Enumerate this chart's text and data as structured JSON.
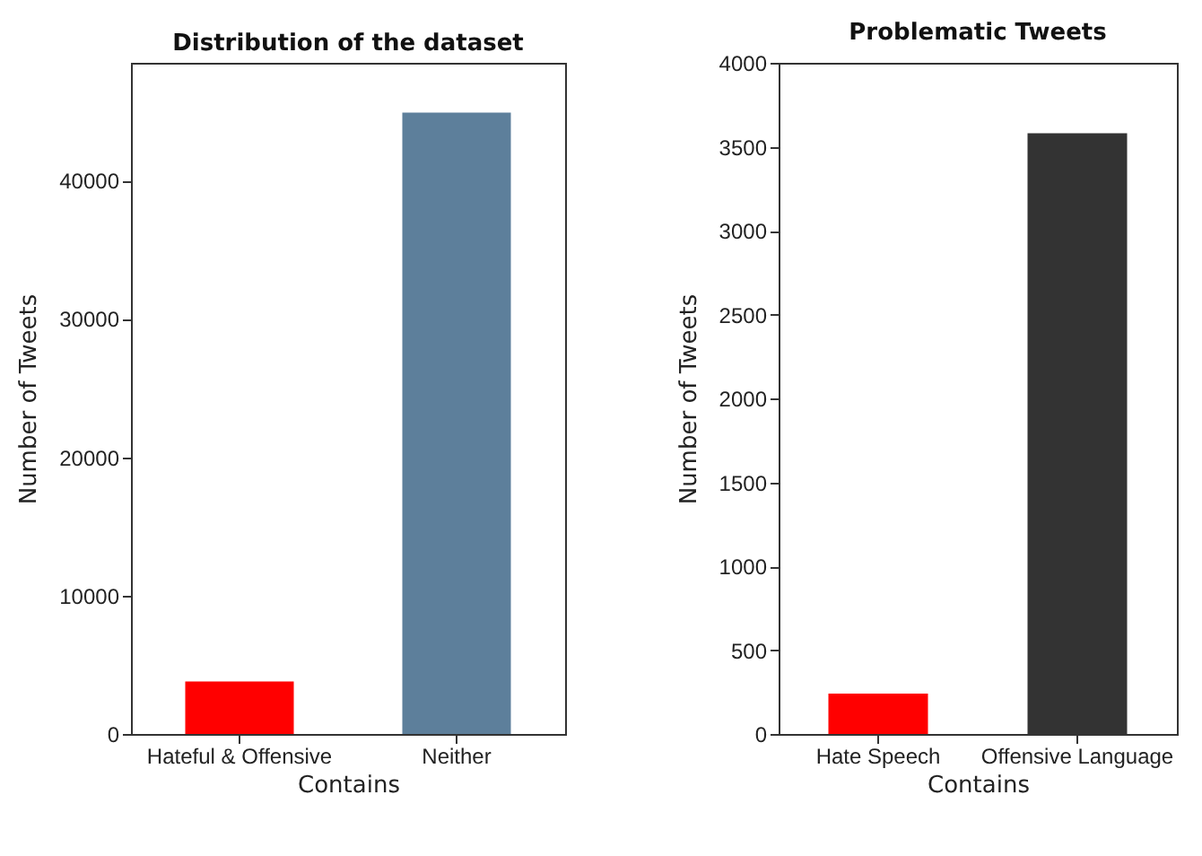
{
  "chart_data": [
    {
      "type": "bar",
      "title": "Distribution of the dataset",
      "xlabel": "Contains",
      "ylabel": "Number of Tweets",
      "categories": [
        "Hateful & Offensive",
        "Neither"
      ],
      "values": [
        3800,
        44900
      ],
      "colors": [
        "#ff0000",
        "#5d7f9b"
      ],
      "ylim": [
        0,
        48500
      ],
      "yticks": [
        0,
        10000,
        20000,
        30000,
        40000
      ],
      "grid": false,
      "legend": false
    },
    {
      "type": "bar",
      "title": "Problematic Tweets",
      "xlabel": "Contains",
      "ylabel": "Number of Tweets",
      "categories": [
        "Hate Speech",
        "Offensive Language"
      ],
      "values": [
        240,
        3580
      ],
      "colors": [
        "#ff0000",
        "#333333"
      ],
      "ylim": [
        0,
        4000
      ],
      "yticks": [
        0,
        500,
        1000,
        1500,
        2000,
        2500,
        3000,
        3500,
        4000
      ],
      "grid": false,
      "legend": false
    }
  ]
}
